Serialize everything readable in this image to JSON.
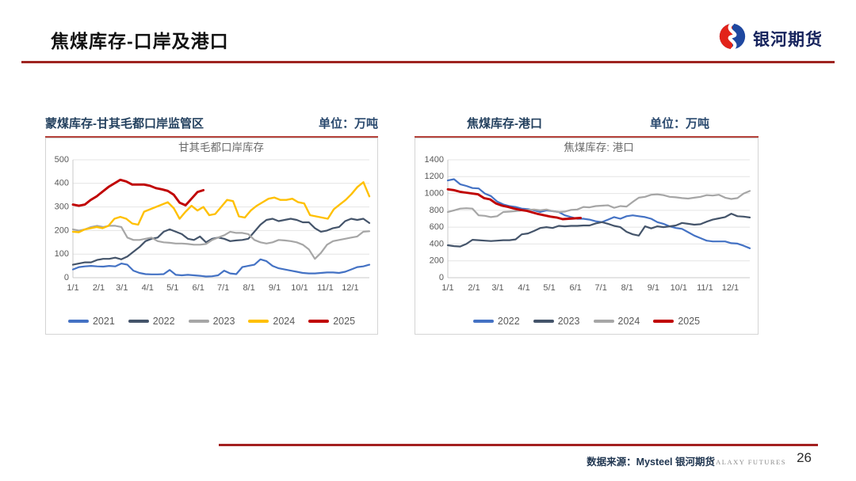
{
  "slide": {
    "title": "焦煤库存-口岸及港口",
    "page_number": "26",
    "footer": {
      "source_label": "数据来源：Mysteel 银河期货",
      "brand_caption": "GALAXY FUTURES"
    },
    "logo": {
      "text": "银河期货"
    }
  },
  "colors": {
    "title_rule": "#9E2420",
    "panel_rule": "#B5433C",
    "footer_rule": "#A32020",
    "header_text": "#24415F",
    "logo_red": "#E2231A",
    "logo_blue": "#1F48A0"
  },
  "panels": [
    {
      "title": "蒙煤库存-甘其毛都口岸监管区",
      "unit_label": "单位：万吨"
    },
    {
      "title": "焦煤库存-港口",
      "unit_label": "单位：万吨"
    }
  ],
  "chart_data": [
    {
      "type": "line",
      "title": "甘其毛都口岸库存",
      "xlabel": "",
      "ylabel": "",
      "ylim": [
        0,
        500
      ],
      "yticks": [
        0,
        100,
        200,
        300,
        400,
        500
      ],
      "grid": true,
      "legend_position": "bottom",
      "x_tick_labels": [
        "1/1",
        "2/1",
        "3/1",
        "4/1",
        "5/1",
        "6/1",
        "7/1",
        "8/1",
        "9/1",
        "10/1",
        "11/1",
        "12/1"
      ],
      "series": [
        {
          "name": "2021",
          "color": "#4472C4",
          "width": 2.2,
          "end_frac": 1,
          "values": [
            35,
            45,
            48,
            50,
            48,
            47,
            50,
            48,
            60,
            55,
            30,
            20,
            15,
            14,
            14,
            15,
            33,
            12,
            10,
            12,
            10,
            8,
            5,
            6,
            10,
            30,
            18,
            15,
            45,
            50,
            55,
            78,
            70,
            50,
            40,
            35,
            30,
            25,
            20,
            18,
            18,
            20,
            22,
            22,
            20,
            25,
            35,
            45,
            48,
            55
          ]
        },
        {
          "name": "2022",
          "color": "#44546A",
          "width": 2.2,
          "end_frac": 1,
          "values": [
            55,
            60,
            65,
            65,
            75,
            80,
            80,
            85,
            78,
            90,
            110,
            130,
            155,
            165,
            170,
            195,
            205,
            195,
            185,
            165,
            160,
            175,
            150,
            165,
            170,
            165,
            155,
            158,
            160,
            165,
            195,
            225,
            245,
            250,
            240,
            245,
            250,
            245,
            235,
            235,
            210,
            195,
            200,
            210,
            215,
            240,
            250,
            245,
            250,
            232
          ]
        },
        {
          "name": "2023",
          "color": "#A6A6A6",
          "width": 2.2,
          "end_frac": 1,
          "values": [
            205,
            200,
            205,
            215,
            220,
            215,
            220,
            220,
            215,
            170,
            160,
            160,
            165,
            170,
            155,
            150,
            148,
            145,
            145,
            143,
            140,
            140,
            143,
            160,
            170,
            180,
            195,
            190,
            190,
            185,
            160,
            150,
            145,
            150,
            160,
            158,
            155,
            150,
            140,
            120,
            80,
            105,
            140,
            155,
            160,
            165,
            170,
            175,
            195,
            197
          ]
        },
        {
          "name": "2024",
          "color": "#FFC000",
          "width": 2.4,
          "end_frac": 1,
          "values": [
            195,
            193,
            205,
            210,
            215,
            210,
            220,
            250,
            258,
            250,
            230,
            225,
            280,
            290,
            300,
            310,
            320,
            295,
            250,
            280,
            305,
            285,
            300,
            265,
            270,
            300,
            330,
            325,
            260,
            255,
            285,
            305,
            320,
            335,
            340,
            330,
            330,
            335,
            320,
            315,
            265,
            260,
            255,
            250,
            290,
            310,
            330,
            355,
            385,
            405,
            345
          ]
        },
        {
          "name": "2025",
          "color": "#C00000",
          "width": 2.9,
          "end_frac": 0.44,
          "values": [
            310,
            305,
            310,
            330,
            345,
            365,
            385,
            400,
            415,
            408,
            395,
            395,
            395,
            390,
            380,
            375,
            368,
            352,
            318,
            307,
            335,
            363,
            371
          ]
        }
      ]
    },
    {
      "type": "line",
      "title": "焦煤库存: 港口",
      "xlabel": "",
      "ylabel": "",
      "ylim": [
        0,
        1400
      ],
      "yticks": [
        0,
        200,
        400,
        600,
        800,
        1000,
        1200,
        1400
      ],
      "grid": true,
      "legend_position": "bottom",
      "x_tick_labels": [
        "1/1",
        "2/1",
        "3/1",
        "4/1",
        "5/1",
        "6/1",
        "7/1",
        "8/1",
        "9/1",
        "10/1",
        "11/1",
        "12/1"
      ],
      "series": [
        {
          "name": "2022",
          "color": "#4472C4",
          "width": 2.2,
          "end_frac": 1,
          "values": [
            1155,
            1170,
            1110,
            1090,
            1065,
            1060,
            1000,
            970,
            905,
            870,
            850,
            840,
            820,
            815,
            800,
            780,
            800,
            790,
            780,
            740,
            720,
            700,
            700,
            690,
            670,
            660,
            690,
            720,
            700,
            730,
            740,
            730,
            720,
            700,
            660,
            640,
            610,
            590,
            580,
            540,
            500,
            470,
            440,
            430,
            430,
            430,
            410,
            405,
            380,
            350
          ]
        },
        {
          "name": "2023",
          "color": "#44546A",
          "width": 2.2,
          "end_frac": 1,
          "values": [
            385,
            375,
            370,
            400,
            450,
            445,
            440,
            435,
            440,
            445,
            445,
            455,
            515,
            525,
            555,
            590,
            600,
            590,
            615,
            610,
            615,
            615,
            620,
            620,
            645,
            660,
            640,
            615,
            600,
            545,
            515,
            500,
            610,
            585,
            610,
            600,
            610,
            620,
            650,
            640,
            630,
            635,
            665,
            690,
            705,
            720,
            760,
            730,
            725,
            715
          ]
        },
        {
          "name": "2024",
          "color": "#A6A6A6",
          "width": 2.2,
          "end_frac": 1,
          "values": [
            780,
            800,
            820,
            825,
            820,
            740,
            735,
            720,
            730,
            780,
            785,
            790,
            800,
            805,
            810,
            800,
            810,
            790,
            780,
            785,
            805,
            810,
            840,
            835,
            850,
            855,
            860,
            830,
            850,
            845,
            900,
            950,
            960,
            985,
            990,
            980,
            960,
            955,
            945,
            940,
            950,
            960,
            980,
            975,
            985,
            950,
            935,
            945,
            1000,
            1030
          ]
        },
        {
          "name": "2025",
          "color": "#C00000",
          "width": 2.9,
          "end_frac": 0.44,
          "values": [
            1050,
            1040,
            1020,
            1010,
            1000,
            990,
            945,
            930,
            880,
            855,
            840,
            820,
            805,
            795,
            775,
            755,
            740,
            725,
            715,
            695,
            700,
            705,
            710
          ]
        }
      ]
    }
  ]
}
